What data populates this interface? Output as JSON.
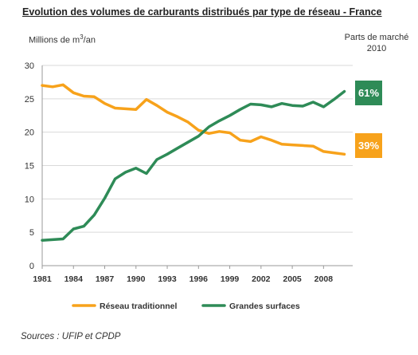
{
  "chart_data": {
    "type": "line",
    "title": "Evolution des volumes de carburants distribués par type de réseau - France",
    "ylabel": "Millions de m³/an",
    "xlabel": "",
    "x": [
      1981,
      1982,
      1983,
      1984,
      1985,
      1986,
      1987,
      1988,
      1989,
      1990,
      1991,
      1992,
      1993,
      1994,
      1995,
      1996,
      1997,
      1998,
      1999,
      2000,
      2001,
      2002,
      2003,
      2004,
      2005,
      2006,
      2007,
      2008,
      2009,
      2010
    ],
    "xticks": [
      1981,
      1984,
      1987,
      1990,
      1993,
      1996,
      1999,
      2002,
      2005,
      2008
    ],
    "xlim": [
      1981,
      2010.8
    ],
    "ylim": [
      0,
      30
    ],
    "yticks": [
      0,
      5,
      10,
      15,
      20,
      25,
      30
    ],
    "grid": true,
    "legend_position": "bottom",
    "series": [
      {
        "name": "Réseau traditionnel",
        "color": "#f7a21b",
        "values": [
          27.0,
          26.8,
          27.1,
          25.9,
          25.4,
          25.3,
          24.3,
          23.6,
          23.5,
          23.4,
          24.9,
          24.0,
          23.0,
          22.3,
          21.5,
          20.3,
          19.8,
          20.1,
          19.9,
          18.8,
          18.6,
          19.3,
          18.8,
          18.2,
          18.1,
          18.0,
          17.9,
          17.1,
          16.9,
          16.7
        ]
      },
      {
        "name": "Grandes surfaces",
        "color": "#2e8b57",
        "values": [
          3.8,
          3.9,
          4.0,
          5.5,
          5.9,
          7.6,
          10.1,
          13.0,
          14.0,
          14.6,
          13.8,
          15.9,
          16.7,
          17.6,
          18.5,
          19.4,
          20.8,
          21.7,
          22.5,
          23.4,
          24.2,
          24.1,
          23.8,
          24.3,
          24.0,
          23.9,
          24.5,
          23.8,
          24.9,
          26.1
        ]
      }
    ],
    "annotations": {
      "share_title": "Parts de marché 2010",
      "share_green": "61%",
      "share_orange": "39%"
    }
  },
  "source": "Sources : UFIP et CPDP"
}
